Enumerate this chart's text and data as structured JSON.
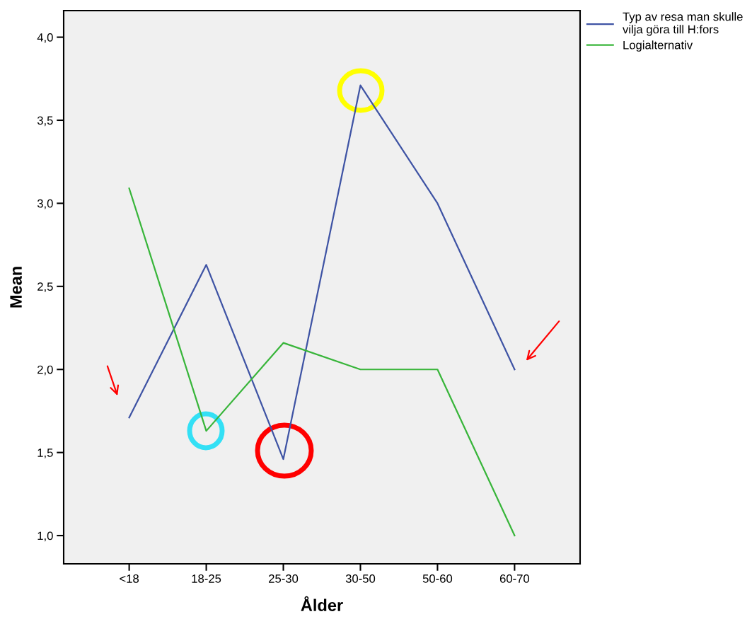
{
  "chart_data": {
    "type": "line",
    "xlabel": "Ålder",
    "ylabel": "Mean",
    "categories": [
      "<18",
      "18-25",
      "25-30",
      "30-50",
      "50-60",
      "60-70"
    ],
    "series": [
      {
        "name": "Typ av resa man skulle\nvilja göra till H:fors",
        "color": "#3e53a4",
        "values": [
          1.71,
          2.63,
          1.46,
          3.71,
          3.0,
          2.0
        ]
      },
      {
        "name": "Logialternativ",
        "color": "#38b53a",
        "values": [
          3.09,
          1.63,
          2.16,
          2.0,
          2.0,
          1.0
        ]
      }
    ],
    "ylim": [
      0.83,
      4.16
    ],
    "yticks": [
      {
        "value": 1.0,
        "label": "1,0"
      },
      {
        "value": 1.5,
        "label": "1,5"
      },
      {
        "value": 2.0,
        "label": "2,0"
      },
      {
        "value": 2.5,
        "label": "2,5"
      },
      {
        "value": 3.0,
        "label": "3,0"
      },
      {
        "value": 3.5,
        "label": "3,5"
      },
      {
        "value": 4.0,
        "label": "4,0"
      }
    ],
    "grid": false,
    "legend": "top right",
    "marker": "none",
    "line_style": "solid"
  }
}
